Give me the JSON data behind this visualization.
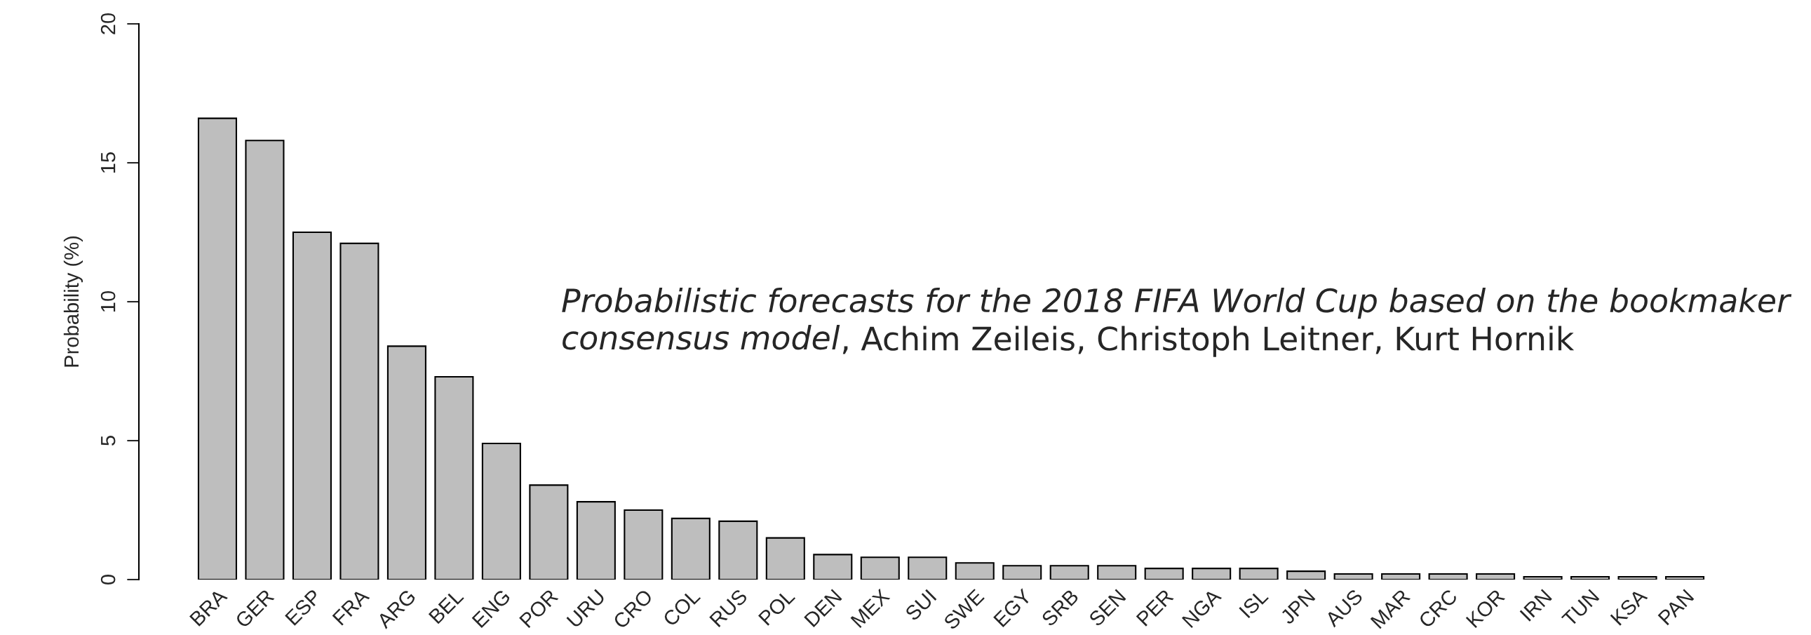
{
  "chart_data": {
    "type": "bar",
    "ylabel": "Probability (%)",
    "categories": [
      "BRA",
      "GER",
      "ESP",
      "FRA",
      "ARG",
      "BEL",
      "ENG",
      "POR",
      "URU",
      "CRO",
      "COL",
      "RUS",
      "POL",
      "DEN",
      "MEX",
      "SUI",
      "SWE",
      "EGY",
      "SRB",
      "SEN",
      "PER",
      "NGA",
      "ISL",
      "JPN",
      "AUS",
      "MAR",
      "CRC",
      "KOR",
      "IRN",
      "TUN",
      "KSA",
      "PAN"
    ],
    "values": [
      16.6,
      15.8,
      12.5,
      12.1,
      8.4,
      7.3,
      4.9,
      3.4,
      2.8,
      2.5,
      2.2,
      2.1,
      1.5,
      0.9,
      0.8,
      0.8,
      0.6,
      0.5,
      0.5,
      0.5,
      0.4,
      0.4,
      0.4,
      0.3,
      0.2,
      0.2,
      0.2,
      0.2,
      0.1,
      0.1,
      0.1,
      0.1
    ],
    "color": "#bebebe",
    "ylim": [
      0,
      20
    ],
    "yticks": [
      0,
      5,
      10,
      15,
      20
    ],
    "grid": false,
    "legend": false,
    "annotations": [
      "Probabilistic forecasts for the 2018 FIFA World Cup based on the bookmaker\nconsensus model",
      ", Achim Zeileis, Christoph Leitner, Kurt Hornik"
    ]
  }
}
